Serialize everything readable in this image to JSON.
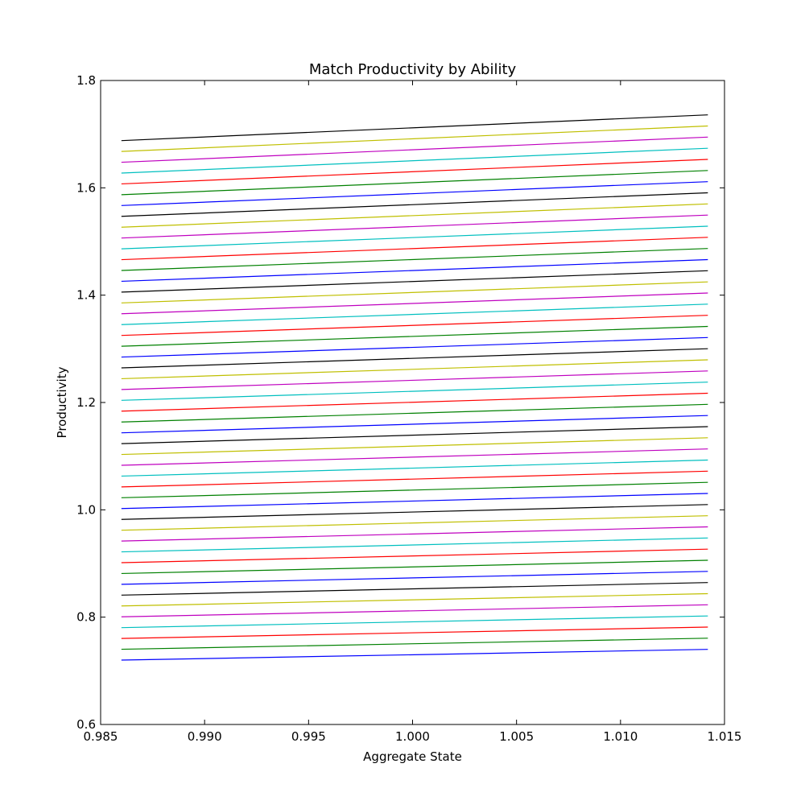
{
  "chart_data": {
    "type": "line",
    "title": "Match Productivity by Ability",
    "xlabel": "Aggregate State",
    "ylabel": "Productivity",
    "xlim": [
      0.985,
      1.015
    ],
    "ylim": [
      0.6,
      1.8
    ],
    "xticks": [
      "0.985",
      "0.990",
      "0.995",
      "1.000",
      "1.005",
      "1.010",
      "1.015"
    ],
    "yticks": [
      "0.6",
      "0.8",
      "1.0",
      "1.2",
      "1.4",
      "1.6",
      "1.8"
    ],
    "grid": false,
    "legend": false,
    "x_range": [
      0.986,
      1.0142
    ],
    "series_count": 49,
    "series_start": [
      0.72,
      1.688
    ],
    "series_end": [
      0.74,
      1.736
    ],
    "colors": [
      "#0000ff",
      "#008000",
      "#ff0000",
      "#00bfbf",
      "#bf00bf",
      "#bfbf00",
      "#000000"
    ]
  }
}
